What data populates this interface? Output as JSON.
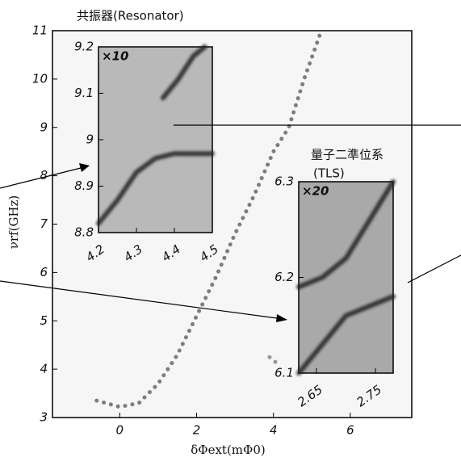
{
  "chart_data": [
    {
      "type": "line",
      "xlabel": "δΦext(mΦ0)",
      "ylabel": "νrf(GHz)",
      "annotations": [
        "共振器(Resonator)",
        "量子二準位系",
        "(TLS)"
      ],
      "xlim": [
        -1.75,
        7.6
      ],
      "ylim": [
        3,
        11
      ],
      "xticks": [
        0,
        2,
        4,
        6
      ],
      "yticks": [
        3,
        4,
        5,
        6,
        7,
        8,
        9,
        10,
        11
      ],
      "series": [
        {
          "color": "#555555",
          "x": [
            -0.6,
            0,
            0.5,
            1,
            1.5,
            2,
            2.5,
            3,
            3.5,
            4,
            4.4,
            4.8,
            5.2
          ],
          "values": [
            3.35,
            3.22,
            3.3,
            3.7,
            4.3,
            5.1,
            5.9,
            6.8,
            7.6,
            8.5,
            9.0,
            10.0,
            10.9
          ]
        },
        {
          "color": "#777777",
          "x": [
            3.9,
            4.05
          ],
          "values": [
            4.25,
            4.15
          ]
        }
      ]
    },
    {
      "type": "line",
      "label": "×10",
      "xlim": [
        4.2,
        4.5
      ],
      "ylim": [
        8.8,
        9.2
      ],
      "xticks": [
        4.2,
        4.3,
        4.4,
        4.5
      ],
      "yticks": [
        8.8,
        8.9,
        9,
        9.1,
        9.2
      ],
      "series": [
        {
          "color": "#222222",
          "x": [
            4.37,
            4.41,
            4.45,
            4.48
          ],
          "values": [
            9.09,
            9.13,
            9.18,
            9.2
          ]
        },
        {
          "color": "#222222",
          "x": [
            4.2,
            4.25,
            4.3,
            4.35,
            4.4,
            4.5
          ],
          "values": [
            8.82,
            8.87,
            8.93,
            8.96,
            8.97,
            8.97
          ]
        }
      ]
    },
    {
      "type": "line",
      "label": "×20",
      "xlim": [
        2.62,
        2.78
      ],
      "ylim": [
        6.1,
        6.3
      ],
      "xticks": [
        2.65,
        2.75
      ],
      "yticks": [
        6.1,
        6.2,
        6.3
      ],
      "series": [
        {
          "color": "#222222",
          "x": [
            2.62,
            2.66,
            2.7,
            2.74,
            2.78
          ],
          "values": [
            6.19,
            6.2,
            6.22,
            6.26,
            6.3
          ]
        },
        {
          "color": "#222222",
          "x": [
            2.62,
            2.66,
            2.7,
            2.74,
            2.78
          ],
          "values": [
            6.1,
            6.13,
            6.16,
            6.17,
            6.18
          ]
        }
      ]
    }
  ]
}
